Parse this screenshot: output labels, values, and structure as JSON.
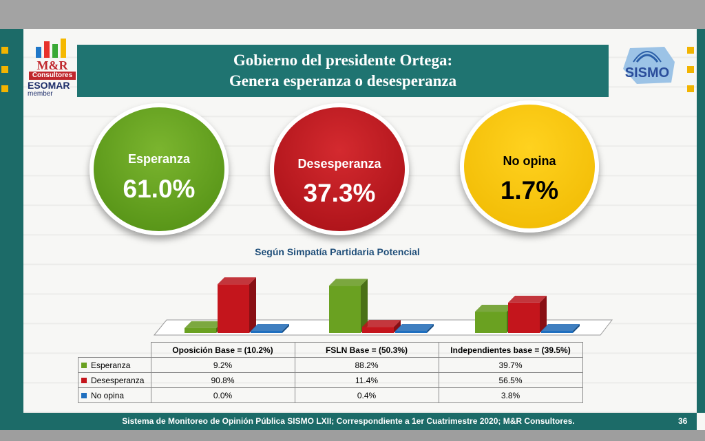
{
  "title": {
    "line1": "Gobierno del presidente Ortega:",
    "line2": "Genera esperanza o desesperanza"
  },
  "logo_left": {
    "brand": "M&R",
    "sub": "Consultores",
    "esomar": "ESOMAR",
    "member": "member"
  },
  "logo_right": {
    "brand": "SISMO"
  },
  "summary": [
    {
      "label": "Esperanza",
      "value": "61.0%",
      "color": "#5f9a1a"
    },
    {
      "label": "Desesperanza",
      "value": "37.3%",
      "color": "#c0151e"
    },
    {
      "label": "No opina",
      "value": "1.7%",
      "color": "#f5c000"
    }
  ],
  "subtitle": "Según Simpatía Partidaria Potencial",
  "chart_data": {
    "type": "bar",
    "categories": [
      "Oposición Base = (10.2%)",
      "FSLN Base = (50.3%)",
      "Independientes base = (39.5%)"
    ],
    "series": [
      {
        "name": "Esperanza",
        "values": [
          9.2,
          88.2,
          39.7
        ],
        "color": "#6aa121",
        "display": [
          "9.2%",
          "88.2%",
          "39.7%"
        ]
      },
      {
        "name": "Desesperanza",
        "values": [
          90.8,
          11.4,
          56.5
        ],
        "color": "#c4151c",
        "display": [
          "90.8%",
          "11.4%",
          "56.5%"
        ]
      },
      {
        "name": "No opina",
        "values": [
          0.0,
          0.4,
          3.8
        ],
        "color": "#1f6fbf",
        "display": [
          "0.0%",
          "0.4%",
          "3.8%"
        ]
      }
    ],
    "ylim": [
      0,
      100
    ]
  },
  "footer": "Sistema de Monitoreo de Opinión Pública SISMO LXII; Correspondiente a 1er Cuatrimestre 2020; M&R Consultores.",
  "page_number": "36"
}
